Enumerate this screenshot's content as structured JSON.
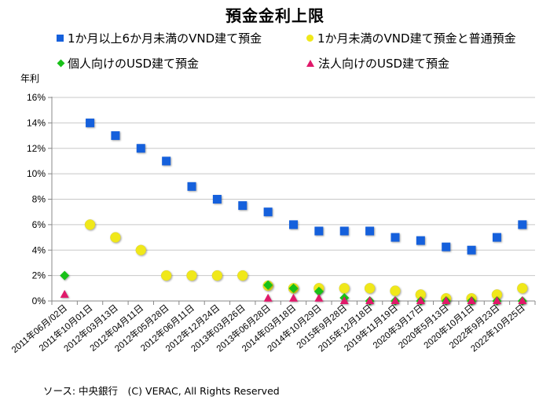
{
  "chart_data": {
    "type": "scatter",
    "title": "預金金利上限",
    "ylabel": "年利",
    "xlabel": "",
    "ylim": [
      0,
      16
    ],
    "yticks": [
      "0%",
      "2%",
      "4%",
      "6%",
      "8%",
      "10%",
      "12%",
      "14%",
      "16%"
    ],
    "grid": true,
    "legend_position": "top",
    "categories": [
      "2011年06月/02日",
      "2011年10月01日",
      "2012年03月13日",
      "2012年04月11日",
      "2012年05月28日",
      "2012年06月11日",
      "2012年12月24日",
      "2013年03月26日",
      "2013年06月28日",
      "2014年03月18日",
      "2014年10月29日",
      "2015年9月28日",
      "2015年12月18日",
      "2019年11月19日",
      "2020年3月17日",
      "2020年5月13日",
      "2020年10月1日",
      "2022年9月23日",
      "2022年10月25日"
    ],
    "series": [
      {
        "name": "1か月以上6か月未満のVND建て預金",
        "marker": "square",
        "color": "#1560dc",
        "values": [
          null,
          14,
          13,
          12,
          11,
          9,
          8,
          7.5,
          7,
          6,
          5.5,
          5.5,
          5.5,
          5,
          4.75,
          4.25,
          4,
          5,
          6
        ]
      },
      {
        "name": "1か月未満のVND建て預金と普通預金",
        "marker": "circle",
        "color": "#f0e81a",
        "values": [
          null,
          6,
          5,
          4,
          2,
          2,
          2,
          2,
          1.2,
          1,
          1,
          1,
          1,
          0.8,
          0.5,
          0.2,
          0.2,
          0.5,
          1
        ]
      },
      {
        "name": "個人向けのUSD建て預金",
        "marker": "diamond",
        "color": "#18c118",
        "values": [
          2,
          null,
          null,
          null,
          null,
          null,
          null,
          null,
          1.25,
          1,
          0.75,
          0.25,
          0,
          0,
          0,
          0,
          0,
          0,
          0
        ]
      },
      {
        "name": "法人向けのUSD建て預金",
        "marker": "triangle",
        "color": "#e0186a",
        "values": [
          0.5,
          null,
          null,
          null,
          null,
          null,
          null,
          null,
          0.2,
          0.2,
          0.2,
          0,
          0,
          0,
          0,
          0,
          0,
          0,
          0
        ]
      }
    ]
  },
  "footer": "ソース: 中央銀行　(C) VERAC, All Rights Reserved"
}
